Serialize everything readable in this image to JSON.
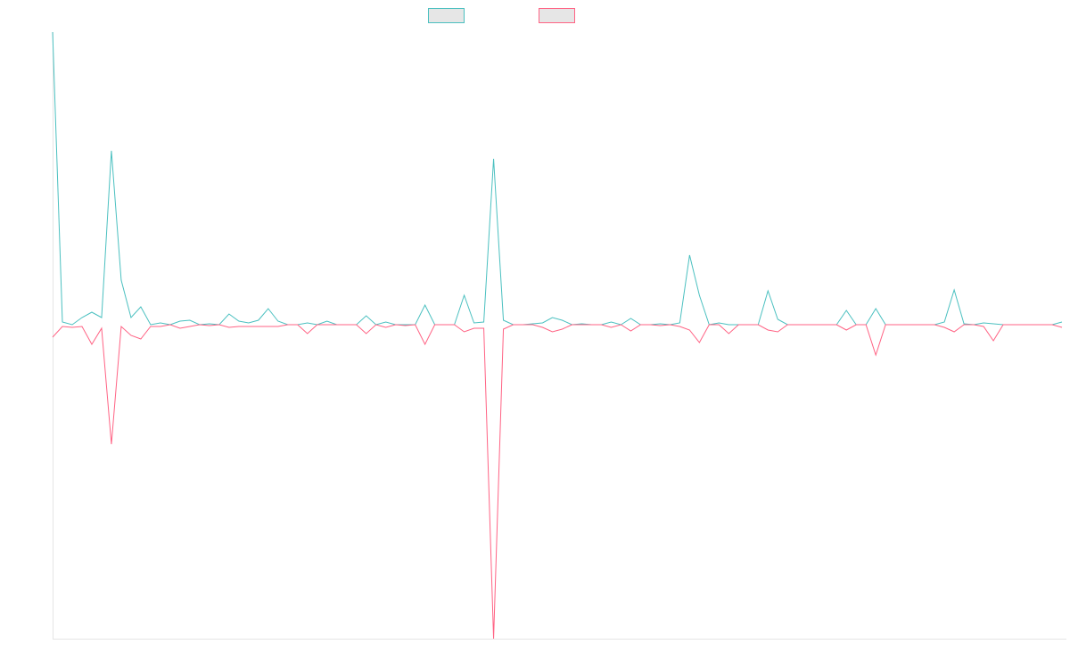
{
  "chart_data": {
    "type": "line",
    "categories": [
      null,
      null,
      null,
      null,
      null,
      null,
      null,
      null,
      null,
      null,
      null,
      null,
      null,
      null,
      null,
      null,
      null,
      null,
      null,
      null,
      null,
      null,
      null,
      null,
      null,
      null,
      null,
      null,
      null,
      null,
      null,
      null,
      null,
      null,
      null,
      null,
      null,
      null,
      null,
      null,
      null,
      null,
      null,
      null,
      null,
      null,
      null,
      null,
      null,
      null,
      null,
      null,
      null,
      null,
      null,
      null,
      null,
      null,
      null,
      null,
      null,
      null,
      null,
      null,
      null,
      null,
      null,
      null,
      null,
      null,
      null,
      null,
      null,
      null,
      null,
      null,
      null,
      null,
      null,
      null,
      null,
      null,
      null,
      null,
      null,
      null,
      null,
      null,
      null,
      null,
      null,
      null,
      null,
      null,
      null,
      null,
      null,
      null,
      null,
      null,
      null,
      null,
      null,
      null
    ],
    "series": [
      {
        "color": "#4bc0c0",
        "values": [
          328,
          3,
          0,
          8,
          14,
          8,
          195,
          50,
          8,
          20,
          0,
          2,
          0,
          4,
          5,
          0,
          1,
          0,
          12,
          4,
          2,
          5,
          18,
          4,
          0,
          0,
          2,
          0,
          4,
          0,
          0,
          0,
          10,
          0,
          3,
          0,
          0,
          0,
          22,
          0,
          0,
          0,
          33,
          2,
          3,
          186,
          5,
          0,
          0,
          1,
          2,
          8,
          5,
          0,
          1,
          0,
          0,
          3,
          0,
          7,
          0,
          0,
          1,
          0,
          2,
          78,
          33,
          0,
          2,
          0,
          0,
          0,
          0,
          38,
          6,
          0,
          0,
          0,
          0,
          0,
          0,
          16,
          0,
          0,
          18,
          0,
          0,
          0,
          0,
          0,
          0,
          3,
          39,
          1,
          0,
          2,
          1,
          0,
          0,
          0,
          0,
          0,
          0,
          3
        ]
      },
      {
        "color": "#ff6384",
        "values": [
          -14,
          -2,
          -3,
          -2,
          -22,
          -4,
          -134,
          -2,
          -12,
          -16,
          -2,
          -2,
          0,
          -4,
          -2,
          0,
          -1,
          0,
          -3,
          -2,
          -2,
          -2,
          -2,
          -2,
          0,
          0,
          -10,
          0,
          0,
          0,
          0,
          0,
          -10,
          0,
          -3,
          0,
          -1,
          0,
          -22,
          0,
          0,
          0,
          -8,
          -4,
          -4,
          -352,
          -5,
          0,
          0,
          0,
          -3,
          -8,
          -5,
          0,
          0,
          0,
          0,
          -3,
          0,
          -7,
          0,
          0,
          -1,
          0,
          -2,
          -6,
          -20,
          0,
          0,
          -10,
          0,
          0,
          0,
          -6,
          -8,
          0,
          0,
          0,
          0,
          0,
          0,
          -6,
          0,
          0,
          -34,
          0,
          0,
          0,
          0,
          0,
          0,
          -3,
          -8,
          0,
          0,
          -2,
          -18,
          0,
          0,
          0,
          0,
          0,
          0,
          -3
        ]
      }
    ],
    "ylim": [
      -352,
      328
    ]
  }
}
